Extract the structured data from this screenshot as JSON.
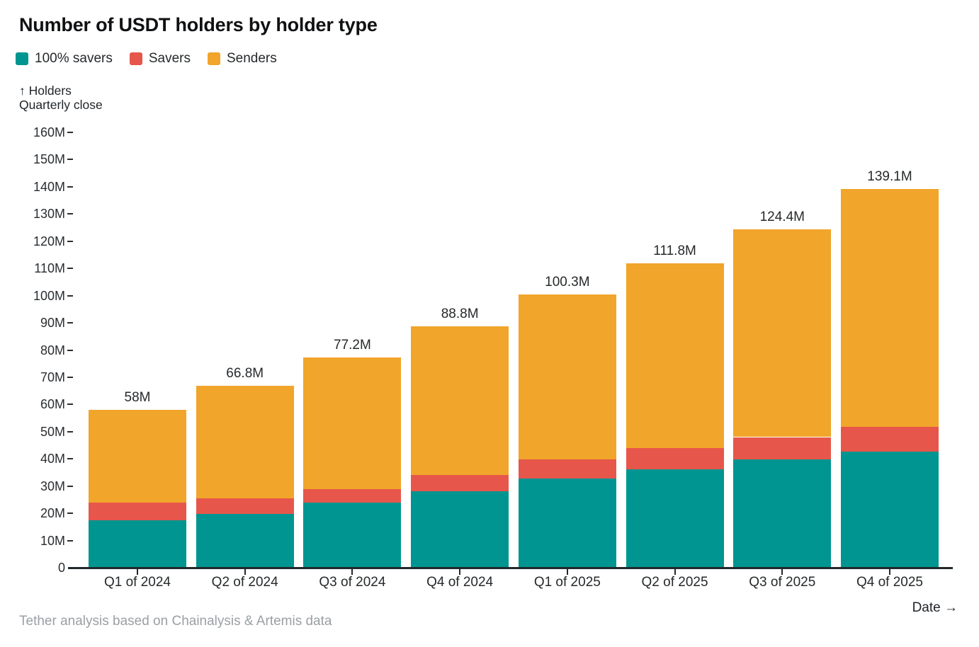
{
  "title": "Number of USDT holders by holder type",
  "legend": {
    "items": [
      {
        "label": "100% savers",
        "color": "#009590"
      },
      {
        "label": "Savers",
        "color": "#e7564b"
      },
      {
        "label": "Senders",
        "color": "#f1a52a"
      }
    ]
  },
  "axis_note": {
    "line1": "↑ Holders",
    "line2": "Quarterly close"
  },
  "footer": {
    "source": "Tether analysis based on Chainalysis & Artemis data",
    "date_label": "Date →"
  },
  "chart_data": {
    "type": "bar",
    "stacked": true,
    "title": "Number of USDT holders by holder type",
    "xlabel": "Date",
    "ylabel": "Holders (quarterly close)",
    "unit": "millions of holders",
    "ylim": [
      0,
      160
    ],
    "grid": false,
    "legend_position": "top-left",
    "ytick_values": [
      0,
      10,
      20,
      30,
      40,
      50,
      60,
      70,
      80,
      90,
      100,
      110,
      120,
      130,
      140,
      150,
      160
    ],
    "ytick_labels": [
      "0",
      "10M",
      "20M",
      "30M",
      "40M",
      "50M",
      "60M",
      "70M",
      "80M",
      "90M",
      "100M",
      "110M",
      "120M",
      "130M",
      "140M",
      "150M",
      "160M"
    ],
    "categories": [
      "Q1 of 2024",
      "Q2 of 2024",
      "Q3 of 2024",
      "Q4 of 2024",
      "Q1 of 2025",
      "Q2 of 2025",
      "Q3 of 2025",
      "Q4 of 2025"
    ],
    "series": [
      {
        "name": "100% savers",
        "color": "#009590",
        "values": [
          17.4,
          19.8,
          23.9,
          28.1,
          32.8,
          36.2,
          39.8,
          42.7
        ]
      },
      {
        "name": "Savers",
        "color": "#e7564b",
        "values": [
          6.5,
          5.7,
          5.1,
          6.0,
          7.0,
          7.8,
          8.2,
          9.1
        ]
      },
      {
        "name": "Senders",
        "color": "#f1a52a",
        "values": [
          34.1,
          41.3,
          48.2,
          54.7,
          60.5,
          67.8,
          76.4,
          87.3
        ]
      }
    ],
    "totals": [
      58,
      66.8,
      77.2,
      88.8,
      100.3,
      111.8,
      124.4,
      139.1
    ],
    "totals_labels": [
      "58M",
      "66.8M",
      "77.2M",
      "88.8M",
      "100.3M",
      "111.8M",
      "124.4M",
      "139.1M"
    ]
  }
}
